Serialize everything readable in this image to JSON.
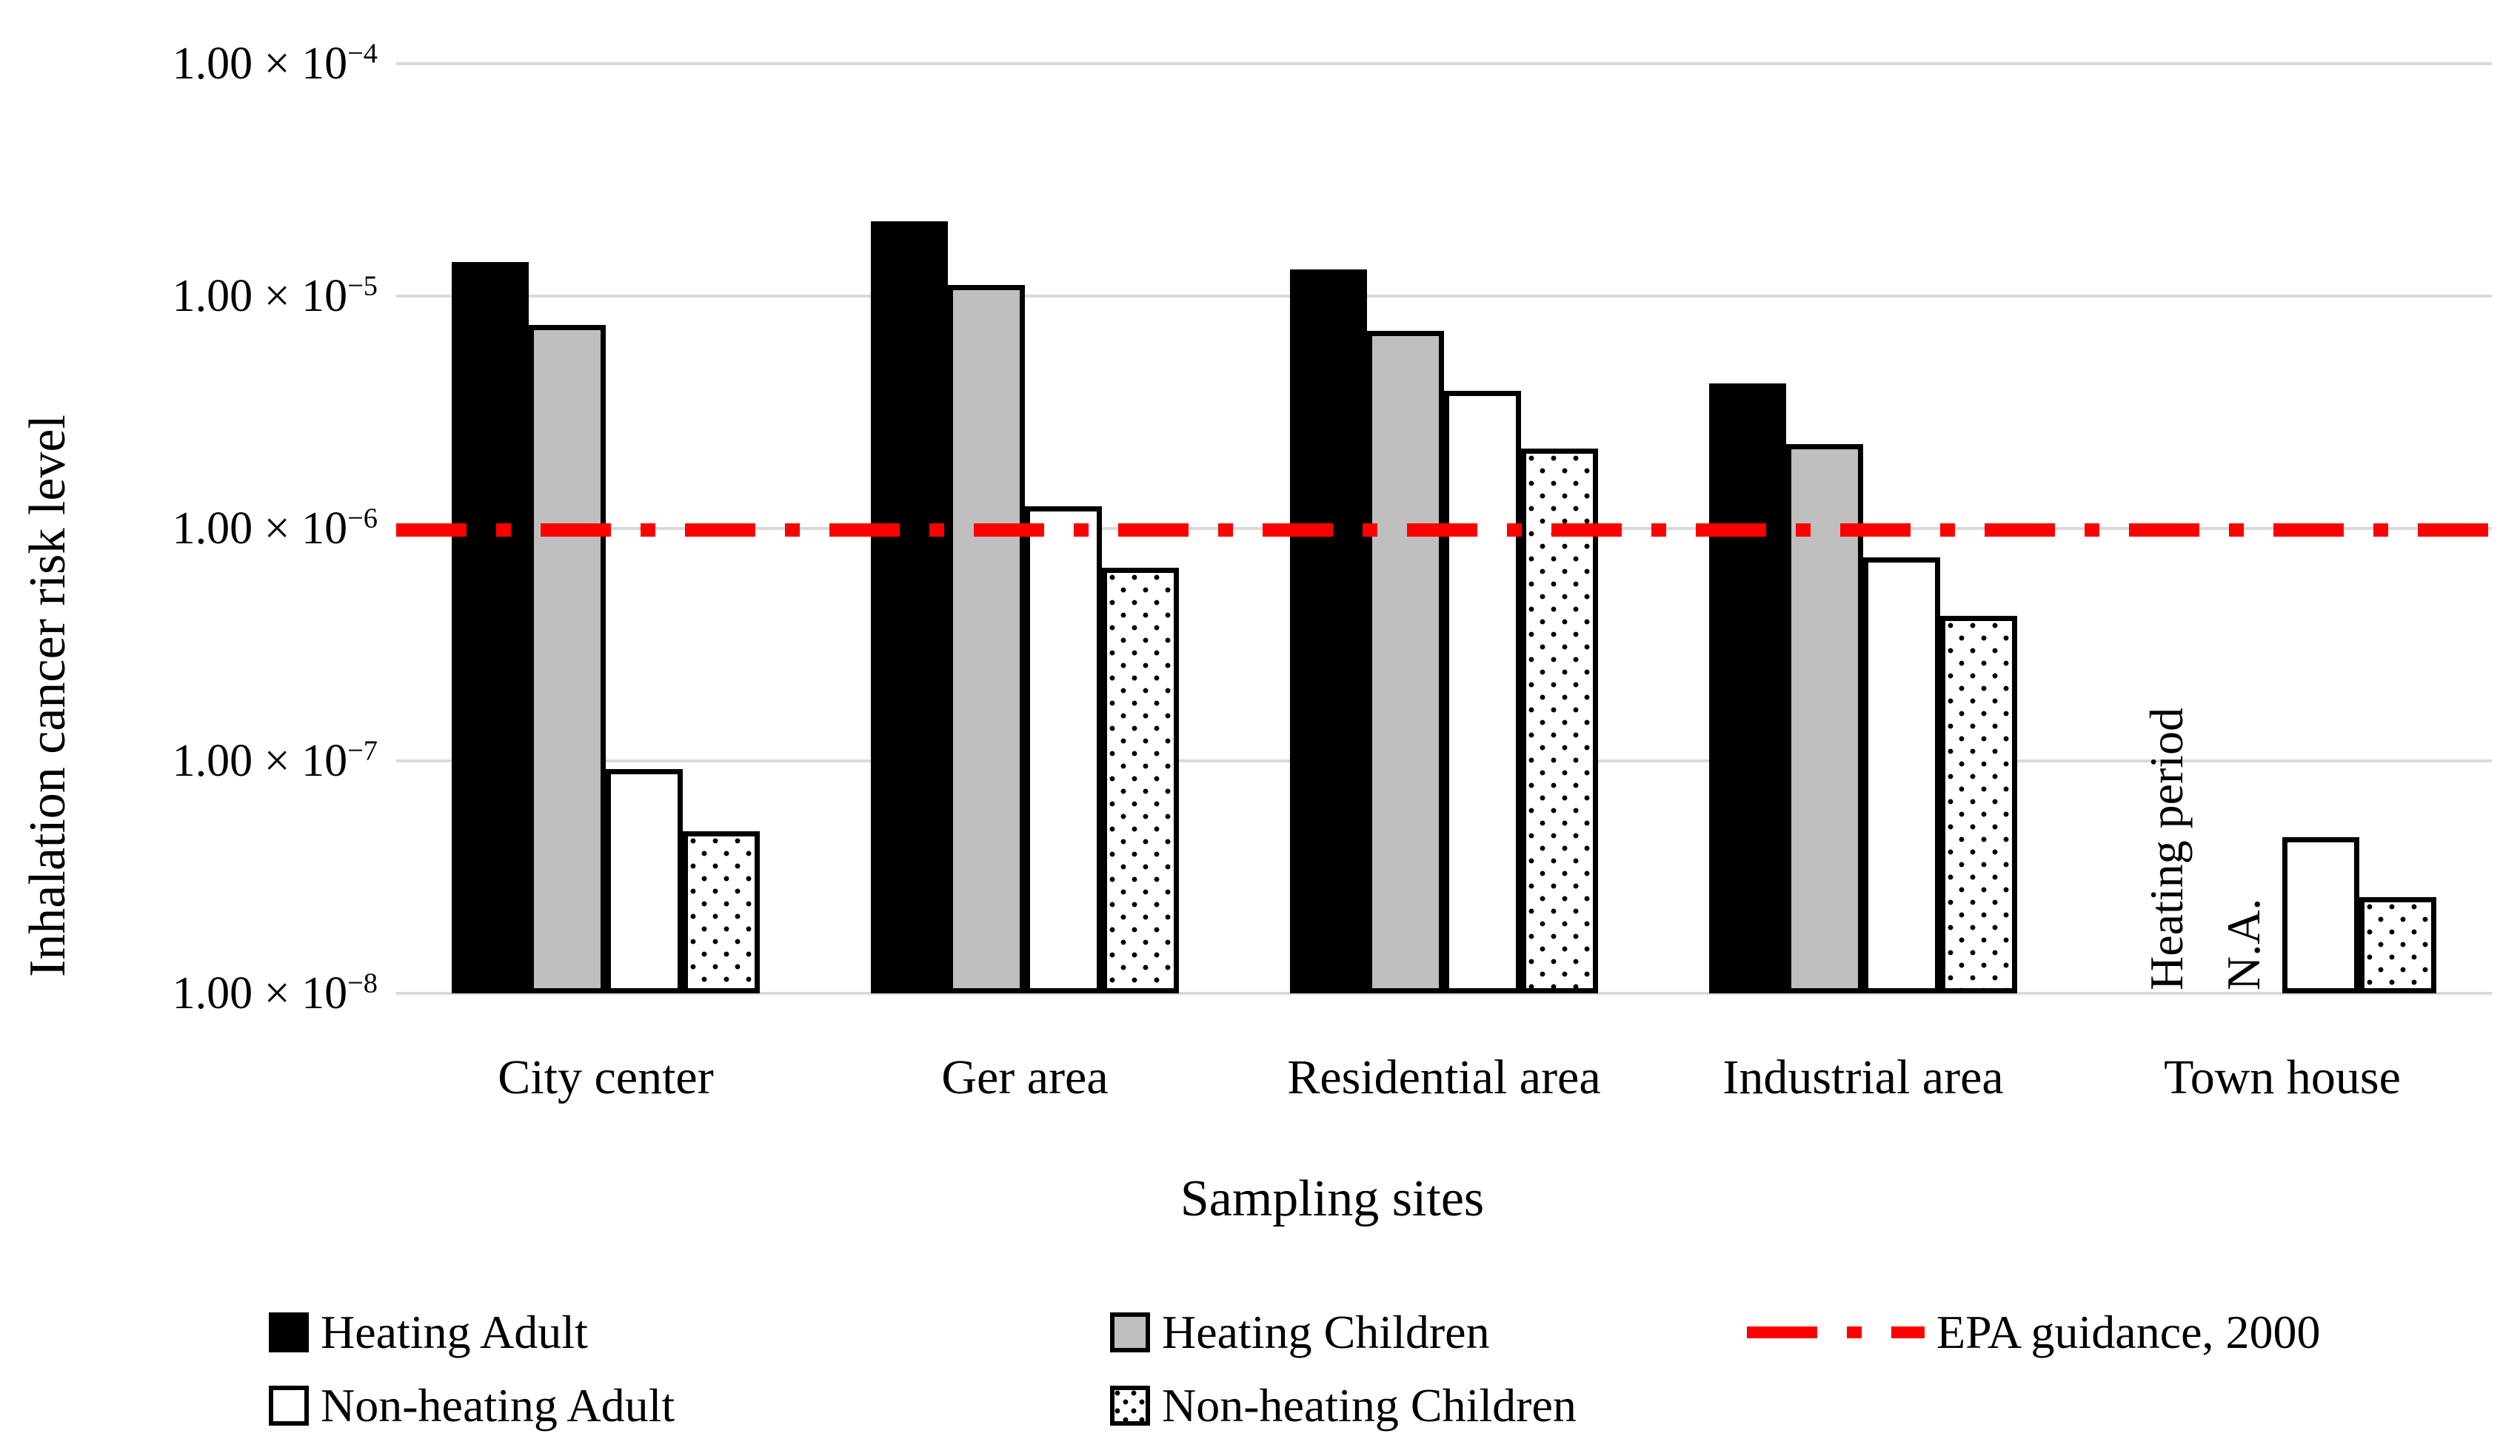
{
  "colors": {
    "black": "#000000",
    "gray": "#bfbfbf",
    "white": "#ffffff",
    "red": "#ff0000",
    "gridline": "#d9d9d9",
    "text": "#000000"
  },
  "chart_data": {
    "type": "bar",
    "title": "",
    "xlabel": "Sampling sites",
    "ylabel": "Inhalation  cancer risk level",
    "y_scale": "log",
    "ylim": [
      1e-08,
      0.0001
    ],
    "grid": true,
    "legend_position": "bottom",
    "yticks": [
      {
        "base": "1.00 × 10",
        "exp": "−4",
        "value": 0.0001
      },
      {
        "base": "1.00 × 10",
        "exp": "−5",
        "value": 1e-05
      },
      {
        "base": "1.00 × 10",
        "exp": "−6",
        "value": 1e-06
      },
      {
        "base": "1.00 × 10",
        "exp": "−7",
        "value": 1e-07
      },
      {
        "base": "1.00 × 10",
        "exp": "−8",
        "value": 1e-08
      }
    ],
    "categories": [
      "City center",
      "Ger area",
      "Residential area",
      "Industrial area",
      "Town house"
    ],
    "series": [
      {
        "name": "Heating Adult",
        "style": "solid-black",
        "values": [
          1.4e-05,
          2.1e-05,
          1.3e-05,
          4.2e-06,
          null
        ]
      },
      {
        "name": "Heating Children",
        "style": "solid-gray",
        "values": [
          7.5e-06,
          1.12e-05,
          7.1e-06,
          2.3e-06,
          null
        ]
      },
      {
        "name": "Non-heating Adult",
        "style": "white",
        "values": [
          9.2e-08,
          1.25e-06,
          3.9e-06,
          7.5e-07,
          4.7e-08
        ]
      },
      {
        "name": "Non-heating Children",
        "style": "dotted",
        "values": [
          5e-08,
          6.8e-07,
          2.2e-06,
          4.2e-07,
          2.6e-08
        ]
      }
    ],
    "reference_line": {
      "label": "EPA guidance, 2000",
      "value": 1e-06,
      "color": "#ff0000",
      "style": "dash-dot"
    },
    "annotations": [
      {
        "text": "Heating period",
        "rotation": -90,
        "category": "Town house",
        "slot": 0
      },
      {
        "text": "N.A.",
        "rotation": -90,
        "category": "Town house",
        "slot": 1
      }
    ]
  }
}
